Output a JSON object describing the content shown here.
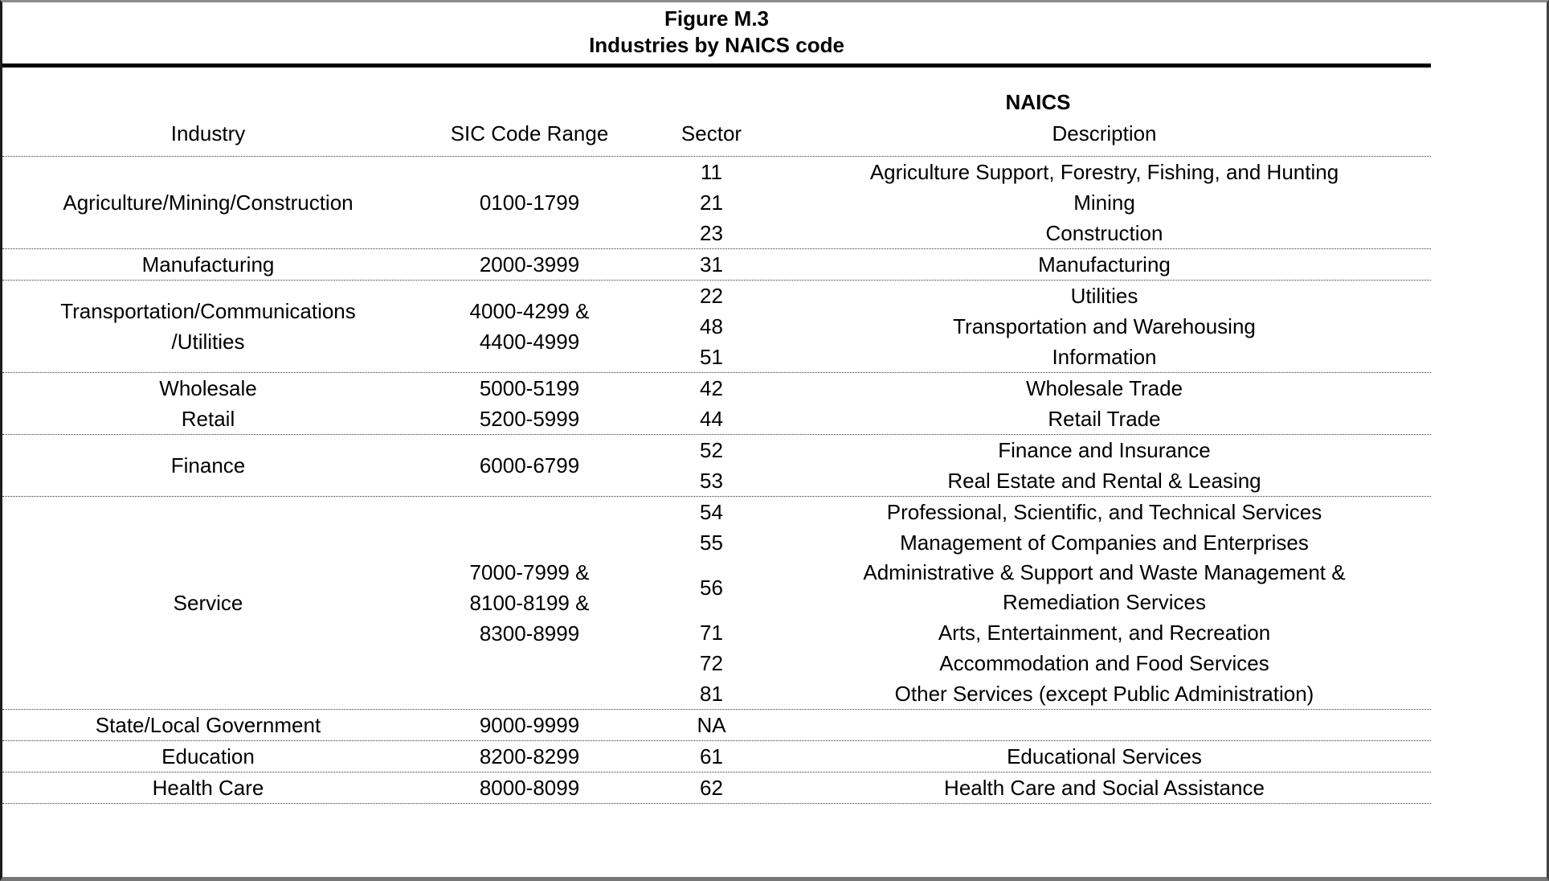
{
  "figure": {
    "title_line1": "Figure M.3",
    "title_line2": "Industries by NAICS code"
  },
  "table": {
    "naics_group_header": "NAICS",
    "columns": {
      "industry": "Industry",
      "sic": "SIC Code Range",
      "sector": "Sector",
      "description": "Description"
    },
    "rows": [
      {
        "industry": [
          "Agriculture/Mining/Construction"
        ],
        "sic": [
          "0100-1799"
        ],
        "entries": [
          {
            "sector": "11",
            "desc": [
              "Agriculture Support, Forestry, Fishing, and Hunting"
            ]
          },
          {
            "sector": "21",
            "desc": [
              "Mining"
            ]
          },
          {
            "sector": "23",
            "desc": [
              "Construction"
            ]
          }
        ]
      },
      {
        "industry": [
          "Manufacturing"
        ],
        "sic": [
          "2000-3999"
        ],
        "entries": [
          {
            "sector": "31",
            "desc": [
              "Manufacturing"
            ]
          }
        ]
      },
      {
        "industry": [
          "Transportation/Communications",
          "/Utilities"
        ],
        "sic": [
          "4000-4299 &",
          "4400-4999"
        ],
        "entries": [
          {
            "sector": "22",
            "desc": [
              "Utilities"
            ]
          },
          {
            "sector": "48",
            "desc": [
              "Transportation and Warehousing"
            ]
          },
          {
            "sector": "51",
            "desc": [
              "Information"
            ]
          }
        ]
      },
      {
        "industry": [
          "Wholesale",
          "Retail"
        ],
        "sic": [
          "5000-5199",
          "5200-5999"
        ],
        "entries": [
          {
            "sector": "42",
            "desc": [
              "Wholesale Trade"
            ]
          },
          {
            "sector": "44",
            "desc": [
              "Retail Trade"
            ]
          }
        ]
      },
      {
        "industry": [
          "Finance"
        ],
        "sic": [
          "6000-6799"
        ],
        "entries": [
          {
            "sector": "52",
            "desc": [
              "Finance and Insurance"
            ]
          },
          {
            "sector": "53",
            "desc": [
              "Real Estate and Rental & Leasing"
            ]
          }
        ]
      },
      {
        "industry": [
          "Service"
        ],
        "sic": [
          "7000-7999 &",
          "8100-8199 &",
          "8300-8999"
        ],
        "entries": [
          {
            "sector": "54",
            "desc": [
              "Professional, Scientific, and Technical Services"
            ]
          },
          {
            "sector": "55",
            "desc": [
              "Management of Companies and Enterprises"
            ]
          },
          {
            "sector": "56",
            "desc": [
              "Administrative & Support and Waste Management &",
              "Remediation Services"
            ]
          },
          {
            "sector": "71",
            "desc": [
              "Arts, Entertainment, and Recreation"
            ]
          },
          {
            "sector": "72",
            "desc": [
              "Accommodation and Food Services"
            ]
          },
          {
            "sector": "81",
            "desc": [
              "Other Services (except Public Administration)"
            ]
          }
        ]
      },
      {
        "industry": [
          "State/Local Government"
        ],
        "sic": [
          "9000-9999"
        ],
        "entries": [
          {
            "sector": "NA",
            "desc": [
              ""
            ]
          }
        ]
      },
      {
        "industry": [
          "Education"
        ],
        "sic": [
          "8200-8299"
        ],
        "entries": [
          {
            "sector": "61",
            "desc": [
              "Educational Services"
            ]
          }
        ]
      },
      {
        "industry": [
          "Health Care"
        ],
        "sic": [
          "8000-8099"
        ],
        "entries": [
          {
            "sector": "62",
            "desc": [
              "Health Care and Social Assistance"
            ]
          }
        ]
      }
    ]
  }
}
